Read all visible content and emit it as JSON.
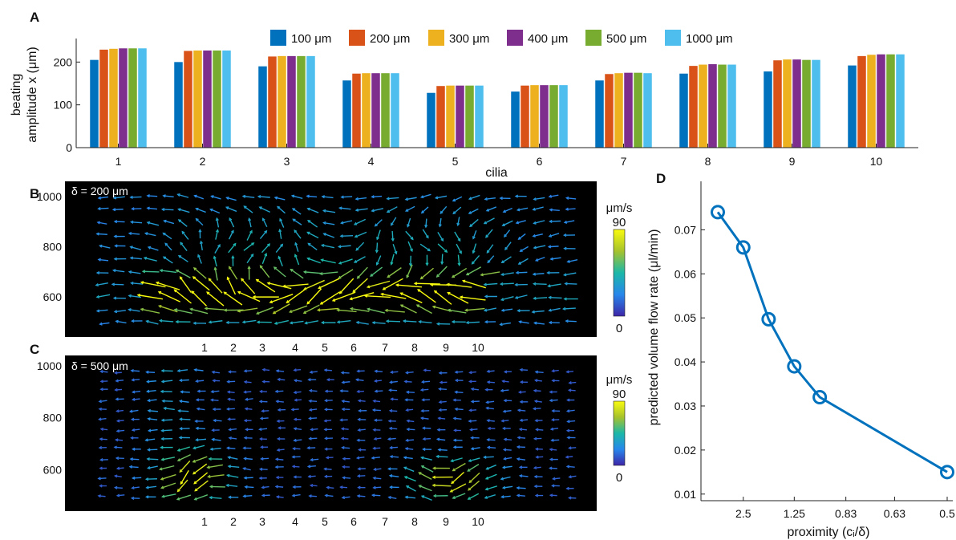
{
  "chart_data": [
    {
      "panel": "A",
      "type": "bar",
      "xlabel": "cilia",
      "ylabel": "beating amplitude x (μm)",
      "ylabel_lines": [
        "beating",
        "amplitude x (μm)"
      ],
      "categories": [
        "1",
        "2",
        "3",
        "4",
        "5",
        "6",
        "7",
        "8",
        "9",
        "10"
      ],
      "yticks": [
        0,
        100,
        200
      ],
      "ylim": [
        0,
        255
      ],
      "legend_position": "top-center",
      "series": [
        {
          "name": "100 μm",
          "color": "#0072BD",
          "values": [
            205,
            200,
            190,
            157,
            128,
            131,
            157,
            173,
            178,
            192
          ]
        },
        {
          "name": "200 μm",
          "color": "#D95319",
          "values": [
            229,
            226,
            213,
            173,
            144,
            145,
            172,
            191,
            204,
            214
          ]
        },
        {
          "name": "300 μm",
          "color": "#EDB120",
          "values": [
            231,
            227,
            214,
            174,
            145,
            146,
            174,
            194,
            206,
            217
          ]
        },
        {
          "name": "400 μm",
          "color": "#7E2F8E",
          "values": [
            232,
            227,
            214,
            174,
            145,
            146,
            175,
            195,
            206,
            218
          ]
        },
        {
          "name": "500 μm",
          "color": "#77AC30",
          "values": [
            232,
            227,
            214,
            174,
            145,
            146,
            175,
            194,
            205,
            218
          ]
        },
        {
          "name": "1000 μm",
          "color": "#4DBEEE",
          "values": [
            232,
            227,
            214,
            174,
            145,
            146,
            174,
            194,
            205,
            218
          ]
        }
      ]
    },
    {
      "panel": "B",
      "type": "quiver",
      "annotation": "δ = 200 μm",
      "yticks": [
        600,
        800,
        1000
      ],
      "ylim": [
        440,
        1060
      ],
      "xtick_labels": [
        "1",
        "2",
        "3",
        "4",
        "5",
        "6",
        "7",
        "8",
        "9",
        "10"
      ],
      "colorbar": {
        "unit": "μm/s",
        "max": 90,
        "min": 0
      }
    },
    {
      "panel": "C",
      "type": "quiver",
      "annotation": "δ = 500 μm",
      "yticks": [
        600,
        800,
        1000
      ],
      "ylim": [
        440,
        1040
      ],
      "xtick_labels": [
        "1",
        "2",
        "3",
        "4",
        "5",
        "6",
        "7",
        "8",
        "9",
        "10"
      ],
      "colorbar": {
        "unit": "μm/s",
        "max": 90,
        "min": 0
      }
    },
    {
      "panel": "D",
      "type": "line",
      "xlabel": "proximity (cᵢ/δ)",
      "ylabel": "predicted volume flow rate (μl/min)",
      "x_tick_labels": [
        "2.5",
        "1.25",
        "0.83",
        "0.63",
        "0.5"
      ],
      "yticks": [
        0.01,
        0.02,
        0.03,
        0.04,
        0.05,
        0.06,
        0.07
      ],
      "ylim": [
        0.0085,
        0.081
      ],
      "color": "#0072BD",
      "x": [
        5,
        2.5,
        1.67,
        1.25,
        1,
        0.5
      ],
      "y": [
        0.074,
        0.066,
        0.0497,
        0.039,
        0.032,
        0.015
      ]
    }
  ]
}
